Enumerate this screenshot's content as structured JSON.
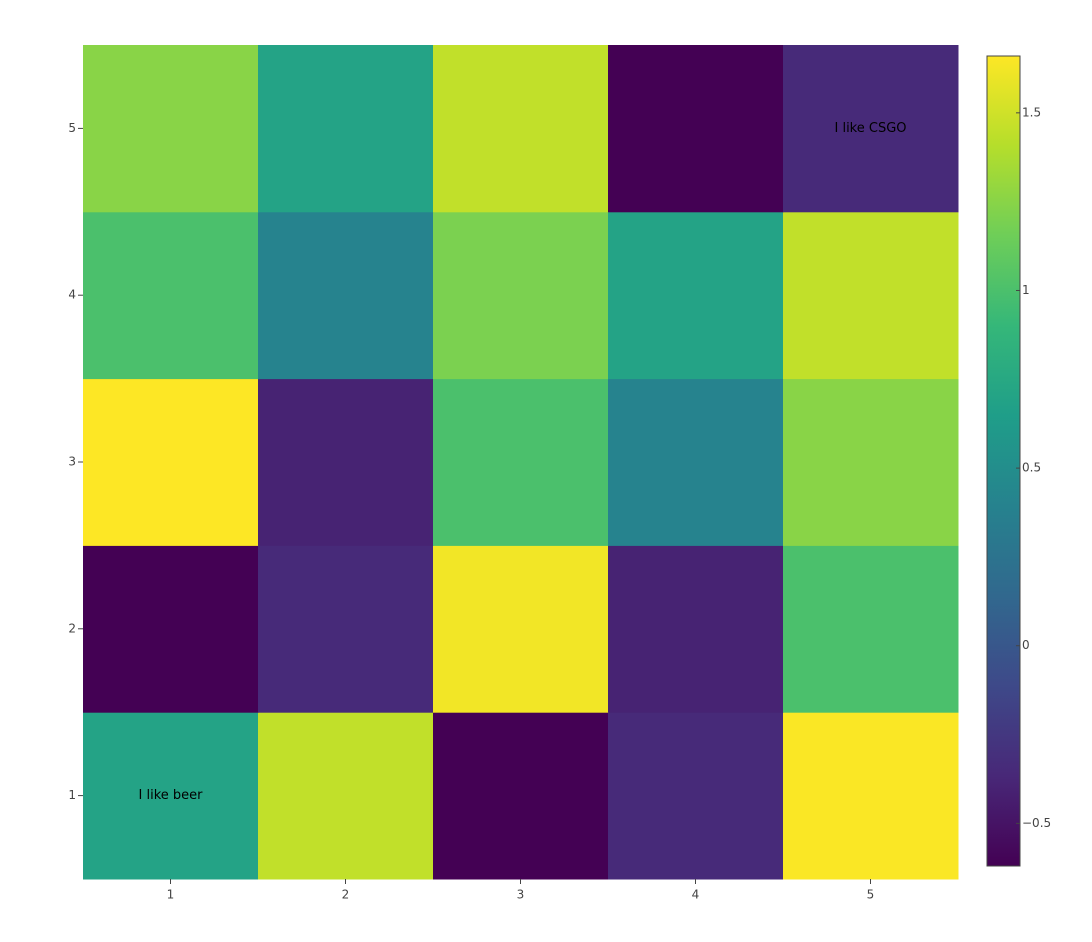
{
  "chart_data": {
    "type": "heatmap",
    "x": [
      1,
      2,
      3,
      4,
      5
    ],
    "y": [
      1,
      2,
      3,
      4,
      5
    ],
    "z": [
      [
        0.7,
        1.45,
        -0.62,
        -0.35,
        1.65
      ],
      [
        -0.62,
        -0.35,
        1.62,
        -0.4,
        1.0
      ],
      [
        1.66,
        -0.4,
        1.0,
        0.4,
        1.25
      ],
      [
        1.0,
        0.4,
        1.2,
        0.7,
        1.45
      ],
      [
        1.25,
        0.7,
        1.45,
        -0.62,
        -0.35
      ]
    ],
    "xlim": [
      0.5,
      5.5
    ],
    "ylim": [
      0.5,
      5.5
    ],
    "xticks": [
      1,
      2,
      3,
      4,
      5
    ],
    "yticks": [
      1,
      2,
      3,
      4,
      5
    ],
    "zlim": [
      -0.62,
      1.66
    ],
    "colorbar_ticks": [
      {
        "value": -0.5,
        "label": "−0.5"
      },
      0,
      0.5,
      1,
      1.5
    ],
    "colorscale": [
      [
        0,
        "#440154"
      ],
      [
        0.111,
        "#482878"
      ],
      [
        0.222,
        "#3e4989"
      ],
      [
        0.333,
        "#31688e"
      ],
      [
        0.444,
        "#26828e"
      ],
      [
        0.556,
        "#1f9e89"
      ],
      [
        0.667,
        "#35b779"
      ],
      [
        0.778,
        "#6ece58"
      ],
      [
        0.889,
        "#b5de2b"
      ],
      [
        1,
        "#fde725"
      ]
    ],
    "annotations": [
      {
        "x": 1,
        "y": 1,
        "text": "I like beer"
      },
      {
        "x": 5,
        "y": 5,
        "text": "I like CSGO"
      }
    ]
  }
}
